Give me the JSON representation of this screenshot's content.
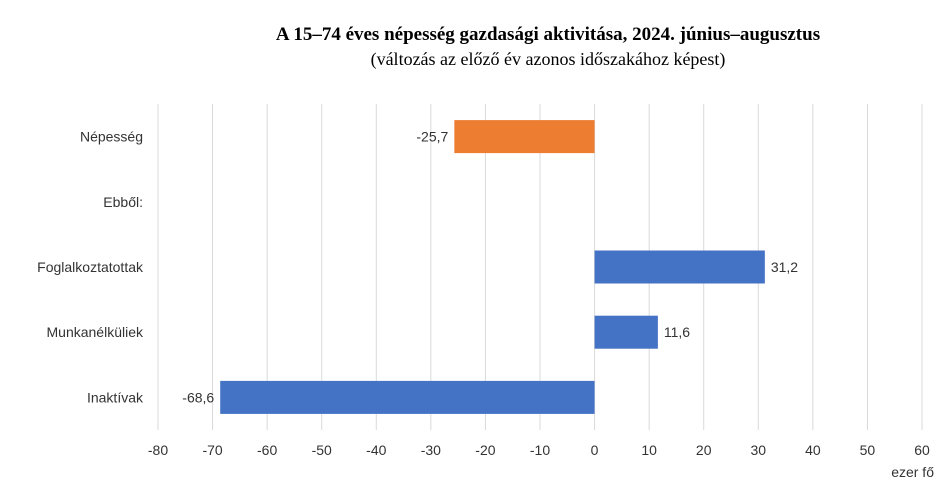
{
  "chart_data": {
    "type": "bar",
    "orientation": "horizontal",
    "title": "A 15–74 éves népesség gazdasági aktivitása, 2024. június–augusztus",
    "subtitle": "(változás az előző év azonos időszakához képest)",
    "unit_label": "ezer fő",
    "categories": [
      "Népesség",
      "Ebből:",
      "Foglalkoztatottak",
      "Munkanélküliek",
      "Inaktívak"
    ],
    "values": [
      -25.7,
      null,
      31.2,
      11.6,
      -68.6
    ],
    "value_labels": [
      "-25,7",
      "",
      "31,2",
      "11,6",
      "-68,6"
    ],
    "bar_colors": [
      "#ED7D31",
      null,
      "#4472C4",
      "#4472C4",
      "#4472C4"
    ],
    "xlim": [
      -80,
      60
    ],
    "x_ticks": [
      -80,
      -70,
      -60,
      -50,
      -40,
      -30,
      -20,
      -10,
      0,
      10,
      20,
      30,
      40,
      50,
      60
    ],
    "x_tick_labels": [
      "-80",
      "-70",
      "-60",
      "-50",
      "-40",
      "-30",
      "-20",
      "-10",
      "0",
      "10",
      "20",
      "30",
      "40",
      "50",
      "60"
    ],
    "grid": true,
    "legend": false
  }
}
